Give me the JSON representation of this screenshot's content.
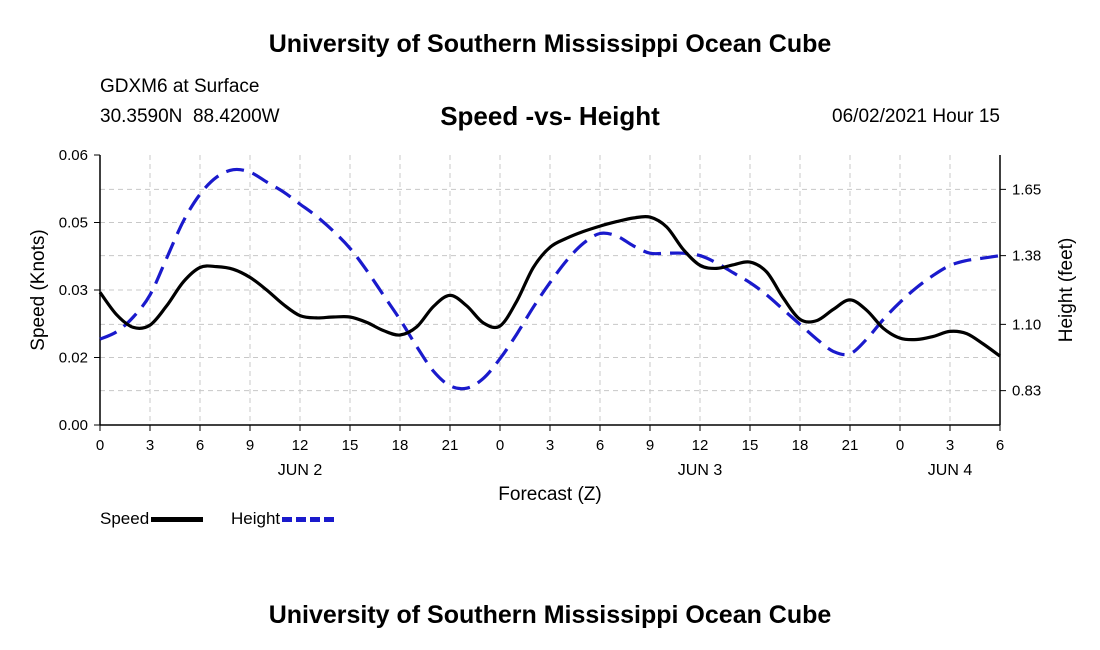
{
  "header": {
    "title": "University of Southern Mississippi Ocean Cube",
    "station": "GDXM6 at Surface",
    "coords": "30.3590N  88.4200W",
    "chart_title": "Speed -vs- Height",
    "timestamp": "06/02/2021 Hour 15"
  },
  "footer": {
    "title": "University of Southern Mississippi Ocean Cube"
  },
  "legend": {
    "speed_label": "Speed",
    "height_label": "Height",
    "speed_color": "#000000",
    "height_color": "#1a1acc"
  },
  "chart_data": {
    "type": "line",
    "title": "Speed -vs- Height",
    "xlabel": "Forecast (Z)",
    "ylabel_left": "Speed (Knots)",
    "ylabel_right": "Height (feet)",
    "x_hours": [
      0,
      54
    ],
    "x_tick_hours": [
      0,
      3,
      6,
      9,
      12,
      15,
      18,
      21,
      24,
      27,
      30,
      33,
      36,
      39,
      42,
      45,
      48,
      51,
      54
    ],
    "x_tick_labels": [
      "0",
      "3",
      "6",
      "9",
      "12",
      "15",
      "18",
      "21",
      "0",
      "3",
      "6",
      "9",
      "12",
      "15",
      "18",
      "21",
      "0",
      "3",
      "6"
    ],
    "day_labels": [
      {
        "label": "JUN 2",
        "hour": 12
      },
      {
        "label": "JUN 3",
        "hour": 36
      },
      {
        "label": "JUN 4",
        "hour": 51
      }
    ],
    "ylim_left": [
      0.0,
      0.06
    ],
    "y_left_ticks": [
      0.0,
      0.015,
      0.03,
      0.045,
      0.06
    ],
    "y_left_tick_labels": [
      "0.00",
      "0.02",
      "0.03",
      "0.05",
      "0.06"
    ],
    "ylim_right": [
      0.69,
      1.79
    ],
    "y_right_ticks": [
      0.83,
      1.1,
      1.38,
      1.65
    ],
    "y_right_tick_labels": [
      "0.83",
      "1.10",
      "1.38",
      "1.65"
    ],
    "grid": true,
    "series": [
      {
        "name": "Speed",
        "axis": "left",
        "color": "#000000",
        "style": "solid",
        "points": [
          [
            0,
            0.0295
          ],
          [
            1,
            0.0245
          ],
          [
            2,
            0.0217
          ],
          [
            3,
            0.0222
          ],
          [
            4,
            0.0265
          ],
          [
            5,
            0.0318
          ],
          [
            6,
            0.035
          ],
          [
            7,
            0.0352
          ],
          [
            8,
            0.0346
          ],
          [
            9,
            0.0328
          ],
          [
            10,
            0.03
          ],
          [
            11,
            0.0268
          ],
          [
            12,
            0.0243
          ],
          [
            13,
            0.0238
          ],
          [
            14,
            0.024
          ],
          [
            15,
            0.024
          ],
          [
            16,
            0.0228
          ],
          [
            17,
            0.021
          ],
          [
            18,
            0.02
          ],
          [
            19,
            0.0218
          ],
          [
            20,
            0.0263
          ],
          [
            21,
            0.0288
          ],
          [
            22,
            0.0265
          ],
          [
            23,
            0.0227
          ],
          [
            24,
            0.022
          ],
          [
            25,
            0.0275
          ],
          [
            26,
            0.035
          ],
          [
            27,
            0.0395
          ],
          [
            28,
            0.0415
          ],
          [
            29,
            0.043
          ],
          [
            30,
            0.0442
          ],
          [
            31,
            0.0452
          ],
          [
            32,
            0.046
          ],
          [
            33,
            0.0462
          ],
          [
            34,
            0.044
          ],
          [
            35,
            0.039
          ],
          [
            36,
            0.0355
          ],
          [
            37,
            0.0348
          ],
          [
            38,
            0.0356
          ],
          [
            39,
            0.0362
          ],
          [
            40,
            0.034
          ],
          [
            41,
            0.0282
          ],
          [
            42,
            0.0235
          ],
          [
            43,
            0.0232
          ],
          [
            44,
            0.0257
          ],
          [
            45,
            0.0278
          ],
          [
            46,
            0.0255
          ],
          [
            47,
            0.0215
          ],
          [
            48,
            0.0193
          ],
          [
            49,
            0.019
          ],
          [
            50,
            0.0197
          ],
          [
            51,
            0.0208
          ],
          [
            52,
            0.0203
          ],
          [
            53,
            0.018
          ],
          [
            54,
            0.0153
          ]
        ]
      },
      {
        "name": "Height",
        "axis": "right",
        "color": "#1a1acc",
        "style": "dashed",
        "points": [
          [
            0,
            1.04
          ],
          [
            1,
            1.07
          ],
          [
            2,
            1.13
          ],
          [
            3,
            1.22
          ],
          [
            4,
            1.37
          ],
          [
            5,
            1.52
          ],
          [
            6,
            1.63
          ],
          [
            7,
            1.7
          ],
          [
            8,
            1.73
          ],
          [
            9,
            1.72
          ],
          [
            10,
            1.68
          ],
          [
            11,
            1.64
          ],
          [
            12,
            1.59
          ],
          [
            13,
            1.54
          ],
          [
            14,
            1.48
          ],
          [
            15,
            1.41
          ],
          [
            16,
            1.32
          ],
          [
            17,
            1.22
          ],
          [
            18,
            1.12
          ],
          [
            19,
            1.01
          ],
          [
            20,
            0.91
          ],
          [
            21,
            0.85
          ],
          [
            22,
            0.84
          ],
          [
            23,
            0.88
          ],
          [
            24,
            0.96
          ],
          [
            25,
            1.06
          ],
          [
            26,
            1.17
          ],
          [
            27,
            1.27
          ],
          [
            28,
            1.36
          ],
          [
            29,
            1.43
          ],
          [
            30,
            1.47
          ],
          [
            31,
            1.46
          ],
          [
            32,
            1.42
          ],
          [
            33,
            1.39
          ],
          [
            34,
            1.39
          ],
          [
            35,
            1.39
          ],
          [
            36,
            1.38
          ],
          [
            37,
            1.35
          ],
          [
            38,
            1.31
          ],
          [
            39,
            1.27
          ],
          [
            40,
            1.22
          ],
          [
            41,
            1.16
          ],
          [
            42,
            1.1
          ],
          [
            43,
            1.04
          ],
          [
            44,
            0.99
          ],
          [
            45,
            0.98
          ],
          [
            46,
            1.04
          ],
          [
            47,
            1.12
          ],
          [
            48,
            1.19
          ],
          [
            49,
            1.25
          ],
          [
            50,
            1.3
          ],
          [
            51,
            1.34
          ],
          [
            52,
            1.36
          ],
          [
            53,
            1.37
          ],
          [
            54,
            1.38
          ]
        ]
      }
    ]
  }
}
